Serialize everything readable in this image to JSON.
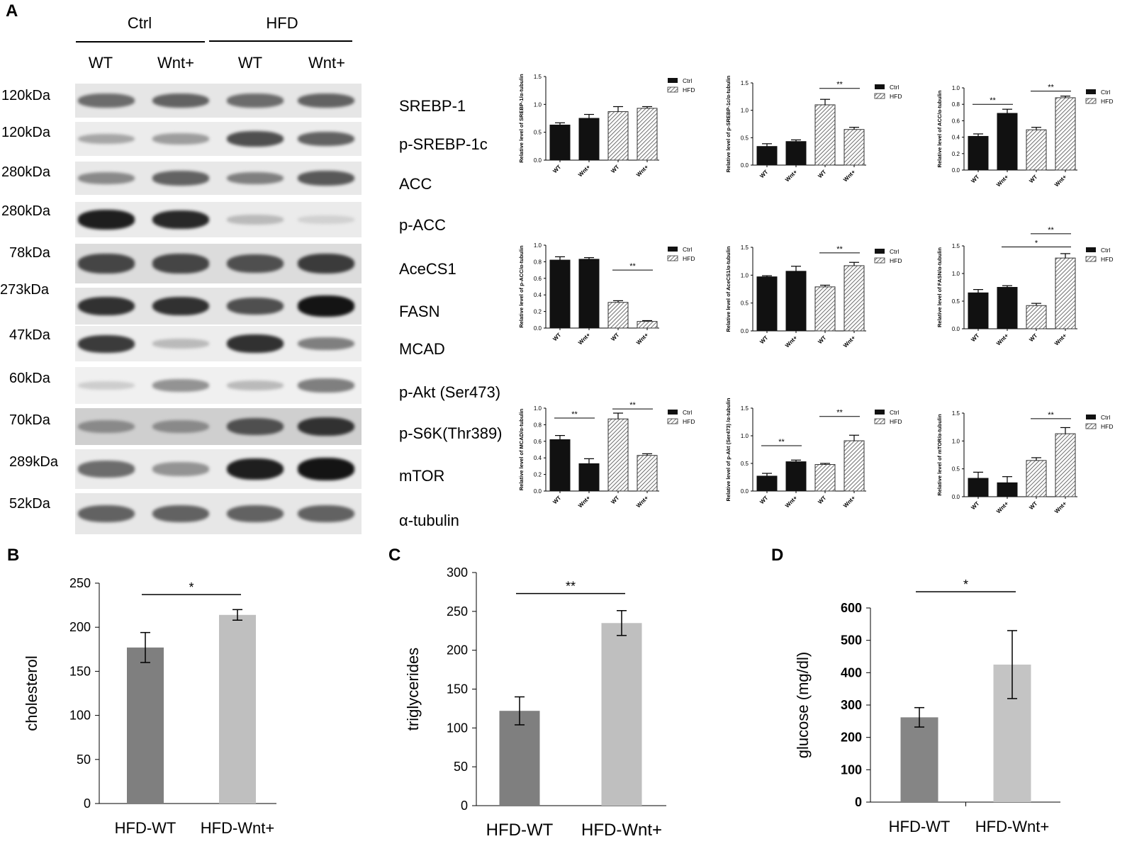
{
  "panels": {
    "A": "A",
    "B": "B",
    "C": "C",
    "D": "D"
  },
  "blot": {
    "groups": [
      "Ctrl",
      "HFD"
    ],
    "lanes": [
      "WT",
      "Wnt+",
      "WT",
      "Wnt+"
    ],
    "rows": [
      {
        "kda": "120kDa",
        "protein": "SREBP-1",
        "intensity": [
          0.55,
          0.6,
          0.55,
          0.6
        ],
        "bg": "#e6e6e6"
      },
      {
        "kda": "120kDa",
        "protein": "p-SREBP-1c",
        "intensity": [
          0.25,
          0.3,
          0.7,
          0.6
        ],
        "bg": "#ececec"
      },
      {
        "kda": "280kDa",
        "protein": "ACC",
        "intensity": [
          0.4,
          0.6,
          0.45,
          0.65
        ],
        "bg": "#e8e8e8"
      },
      {
        "kda": "280kDa",
        "protein": "p-ACC",
        "intensity": [
          0.95,
          0.9,
          0.15,
          0.03
        ],
        "bg": "#ebebeb"
      },
      {
        "kda": "78kDa",
        "protein": "AceCS1",
        "intensity": [
          0.75,
          0.75,
          0.7,
          0.8
        ],
        "bg": "#dcdcdc"
      },
      {
        "kda": "273kDa",
        "protein": "FASN",
        "intensity": [
          0.85,
          0.85,
          0.7,
          1.0
        ],
        "bg": "#e4e4e4"
      },
      {
        "kda": "47kDa",
        "protein": "MCAD",
        "intensity": [
          0.8,
          0.15,
          0.85,
          0.45
        ],
        "bg": "#ededed"
      },
      {
        "kda": "60kDa",
        "protein": "p-Akt (Ser473)",
        "intensity": [
          0.05,
          0.35,
          0.15,
          0.45
        ],
        "bg": "#f0f0f0"
      },
      {
        "kda": "70kDa",
        "protein": "p-S6K(Thr389)",
        "intensity": [
          0.4,
          0.4,
          0.7,
          0.85
        ],
        "bg": "#cfcfcf"
      },
      {
        "kda": "289kDa",
        "protein": "mTOR",
        "intensity": [
          0.55,
          0.35,
          0.95,
          1.0
        ],
        "bg": "#ebebeb"
      },
      {
        "kda": "52kDa",
        "protein": "α-tubulin",
        "intensity": [
          0.6,
          0.6,
          0.6,
          0.6
        ],
        "bg": "#e7e7e7"
      }
    ]
  },
  "colors": {
    "ctrl_bar": "#111111",
    "hfd_bar_stroke": "#333333",
    "b_bar1": "#7f7f7f",
    "b_bar2": "#bfbfbf"
  },
  "chart_data": [
    {
      "type": "bar",
      "panel": "A",
      "ylabel": "Relative level of SREBP-1/α-tubulin",
      "categories": [
        "WT",
        "Wnt+",
        "WT",
        "Wnt+"
      ],
      "values": [
        0.63,
        0.75,
        0.87,
        0.93
      ],
      "errors": [
        0.04,
        0.07,
        0.09,
        0.03
      ],
      "ylim": [
        0,
        1.5
      ],
      "yticks": [
        "0.0",
        "0.5",
        "1.0",
        "1.5"
      ],
      "legend": [
        "Ctrl",
        "HFD"
      ],
      "sig": []
    },
    {
      "type": "bar",
      "panel": "A",
      "ylabel": "Relative level of p-SREBP-1c/α-tubulin",
      "categories": [
        "WT",
        "Wnt+",
        "WT",
        "Wnt+"
      ],
      "values": [
        0.34,
        0.43,
        1.1,
        0.65
      ],
      "errors": [
        0.05,
        0.03,
        0.1,
        0.04
      ],
      "ylim": [
        0,
        1.5
      ],
      "yticks": [
        "0.0",
        "0.5",
        "1.0",
        "1.5"
      ],
      "legend": [
        "Ctrl",
        "HFD"
      ],
      "sig": [
        {
          "from": 2,
          "to": 3,
          "y": 1.4,
          "label": "**"
        }
      ]
    },
    {
      "type": "bar",
      "panel": "A",
      "ylabel": "Relative level of ACC/α-tubulin",
      "categories": [
        "WT",
        "Wnt+",
        "WT",
        "Wnt+"
      ],
      "values": [
        0.41,
        0.69,
        0.49,
        0.88
      ],
      "errors": [
        0.03,
        0.05,
        0.03,
        0.02
      ],
      "ylim": [
        0,
        1.0
      ],
      "yticks": [
        "0.0",
        "0.2",
        "0.4",
        "0.6",
        "0.8",
        "1.0"
      ],
      "legend": [
        "Ctrl",
        "HFD"
      ],
      "sig": [
        {
          "from": 0,
          "to": 1,
          "y": 0.8,
          "label": "**"
        },
        {
          "from": 2,
          "to": 3,
          "y": 0.96,
          "label": "**"
        }
      ]
    },
    {
      "type": "bar",
      "panel": "A",
      "ylabel": "Relative level of p-ACC/α-tubulin",
      "categories": [
        "WT",
        "Wnt+",
        "WT",
        "Wnt+"
      ],
      "values": [
        0.82,
        0.83,
        0.31,
        0.08
      ],
      "errors": [
        0.04,
        0.02,
        0.02,
        0.01
      ],
      "ylim": [
        0,
        1.0
      ],
      "yticks": [
        "0.0",
        "0.2",
        "0.4",
        "0.6",
        "0.8",
        "1.0"
      ],
      "legend": [
        "Ctrl",
        "HFD"
      ],
      "sig": [
        {
          "from": 2,
          "to": 3,
          "y": 0.7,
          "label": "**"
        }
      ]
    },
    {
      "type": "bar",
      "panel": "A",
      "ylabel": "Relative level of AceCS1/α-tubulin",
      "categories": [
        "WT",
        "Wnt+",
        "WT",
        "Wnt+"
      ],
      "values": [
        0.97,
        1.07,
        0.79,
        1.17
      ],
      "errors": [
        0.02,
        0.09,
        0.03,
        0.06
      ],
      "ylim": [
        0,
        1.5
      ],
      "yticks": [
        "0.0",
        "0.5",
        "1.0",
        "1.5"
      ],
      "legend": [
        "Ctrl",
        "HFD"
      ],
      "sig": [
        {
          "from": 2,
          "to": 3,
          "y": 1.4,
          "label": "**"
        }
      ]
    },
    {
      "type": "bar",
      "panel": "A",
      "ylabel": "Relative level of FASN/α-tubulin",
      "categories": [
        "WT",
        "Wnt+",
        "WT",
        "Wnt+"
      ],
      "values": [
        0.65,
        0.75,
        0.42,
        1.28
      ],
      "errors": [
        0.06,
        0.03,
        0.04,
        0.08
      ],
      "ylim": [
        0,
        1.5
      ],
      "yticks": [
        "0.0",
        "0.5",
        "1.0",
        "1.5"
      ],
      "legend": [
        "Ctrl",
        "HFD"
      ],
      "sig": [
        {
          "from": 1,
          "to": 3,
          "y": 1.48,
          "label": "*"
        },
        {
          "from": 2,
          "to": 3,
          "y": 1.72,
          "label": "**"
        }
      ]
    },
    {
      "type": "bar",
      "panel": "A",
      "ylabel": "Relative level of MCAD/α-tubulin",
      "categories": [
        "WT",
        "Wnt+",
        "WT",
        "Wnt+"
      ],
      "values": [
        0.62,
        0.33,
        0.87,
        0.43
      ],
      "errors": [
        0.05,
        0.06,
        0.07,
        0.02
      ],
      "ylim": [
        0,
        1.0
      ],
      "yticks": [
        "0.0",
        "0.2",
        "0.4",
        "0.6",
        "0.8",
        "1.0"
      ],
      "legend": [
        "Ctrl",
        "HFD"
      ],
      "sig": [
        {
          "from": 0,
          "to": 1,
          "y": 0.88,
          "label": "**"
        },
        {
          "from": 2,
          "to": 3,
          "y": 0.99,
          "label": "**"
        }
      ]
    },
    {
      "type": "bar",
      "panel": "A",
      "ylabel": "Relative level of p-Akt (Ser473) /α-tubulin",
      "categories": [
        "WT",
        "Wnt+",
        "WT",
        "Wnt+"
      ],
      "values": [
        0.27,
        0.53,
        0.48,
        0.91
      ],
      "errors": [
        0.05,
        0.03,
        0.02,
        0.1
      ],
      "ylim": [
        0,
        1.5
      ],
      "yticks": [
        "0.0",
        "0.5",
        "1.0",
        "1.5"
      ],
      "legend": [
        "Ctrl",
        "HFD"
      ],
      "sig": [
        {
          "from": 0,
          "to": 1,
          "y": 0.82,
          "label": "**"
        },
        {
          "from": 2,
          "to": 3,
          "y": 1.35,
          "label": "**"
        }
      ]
    },
    {
      "type": "bar",
      "panel": "A",
      "ylabel": "Relative level of mTOR/α-tubulin",
      "categories": [
        "WT",
        "Wnt+",
        "WT",
        "Wnt+"
      ],
      "values": [
        0.33,
        0.25,
        0.65,
        1.13
      ],
      "errors": [
        0.11,
        0.11,
        0.05,
        0.11
      ],
      "ylim": [
        0,
        1.5
      ],
      "yticks": [
        "0.0",
        "0.5",
        "1.0",
        "1.5"
      ],
      "legend": [
        "Ctrl",
        "HFD"
      ],
      "sig": [
        {
          "from": 2,
          "to": 3,
          "y": 1.4,
          "label": "**"
        }
      ]
    },
    {
      "type": "bar",
      "panel": "B",
      "ylabel": "cholesterol",
      "categories": [
        "HFD-WT",
        "HFD-Wnt+"
      ],
      "values": [
        177,
        214
      ],
      "errors": [
        17,
        6
      ],
      "ylim": [
        0,
        250
      ],
      "yticks": [
        "0",
        "50",
        "100",
        "150",
        "200",
        "250"
      ],
      "sig": [
        {
          "from": 0,
          "to": 1,
          "y": 237,
          "label": "*"
        }
      ]
    },
    {
      "type": "bar",
      "panel": "C",
      "ylabel": "triglycerides",
      "categories": [
        "HFD-WT",
        "HFD-Wnt+"
      ],
      "values": [
        122,
        235
      ],
      "errors": [
        18,
        16
      ],
      "ylim": [
        0,
        300
      ],
      "yticks": [
        "0",
        "50",
        "100",
        "150",
        "200",
        "250",
        "300"
      ],
      "sig": [
        {
          "from": 0,
          "to": 1,
          "y": 273,
          "label": "**"
        }
      ]
    },
    {
      "type": "bar",
      "panel": "D",
      "ylabel": "glucose (mg/dl)",
      "categories": [
        "HFD-WT",
        "HFD-Wnt+"
      ],
      "values": [
        262,
        425
      ],
      "errors": [
        30,
        105
      ],
      "ylim": [
        0,
        600
      ],
      "yticks": [
        "0",
        "100",
        "200",
        "300",
        "400",
        "500",
        "600"
      ],
      "sig": [
        {
          "from": 0,
          "to": 1,
          "y": 650,
          "label": "*"
        }
      ]
    }
  ]
}
